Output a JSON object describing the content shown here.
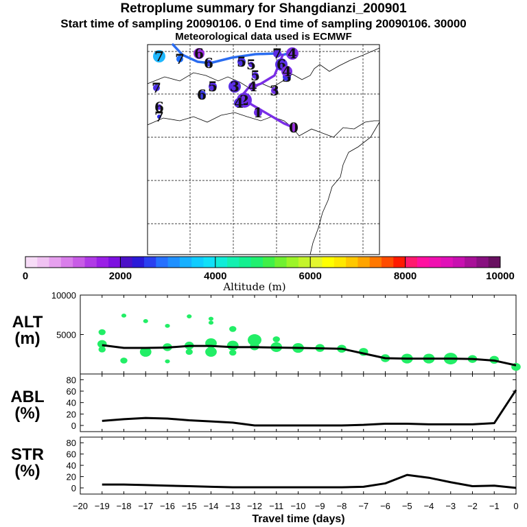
{
  "header": {
    "title": "Retroplume summary for Shangdianzi_200901",
    "subtitle": "Start time of sampling 20090106.     0     End time of sampling 20090106. 30000",
    "met_line": "Meteorological data used is ECMWF"
  },
  "map": {
    "day_markers": [
      {
        "label": "0",
        "color": "#9b30e0"
      },
      {
        "label": "1",
        "color": "#6e2ee6"
      },
      {
        "label": "2",
        "color": "#6e2ee6"
      },
      {
        "label": "3",
        "color": "#6e2ee6"
      },
      {
        "label": "4",
        "color": "#7a2ee6"
      },
      {
        "label": "5",
        "color": "#4a2ee6"
      },
      {
        "label": "6",
        "color": "#3a3ae6"
      },
      {
        "label": "7",
        "color": "#1fb8ff"
      },
      {
        "label": "3",
        "color": "#5a2ee6"
      },
      {
        "label": "4",
        "color": "#5a2ee6"
      },
      {
        "label": "5",
        "color": "#5a2ee6"
      },
      {
        "label": "6",
        "color": "#5a2ee6"
      },
      {
        "label": "7",
        "color": "#5a2ee6"
      },
      {
        "label": "3",
        "color": "#3b2ee6"
      },
      {
        "label": "4",
        "color": "#7a2ee6"
      },
      {
        "label": "5",
        "color": "#5a2ee6"
      },
      {
        "label": "6",
        "color": "#3a3ae6"
      },
      {
        "label": "7",
        "color": "#1d6fff"
      },
      {
        "label": "5",
        "color": "#5a2ee6"
      },
      {
        "label": "6",
        "color": "#9b30e0"
      },
      {
        "label": "7",
        "color": "#4a2ee6"
      },
      {
        "label": "6",
        "color": "#5a2ee6"
      },
      {
        "label": "7",
        "color": "#2a2ae6"
      },
      {
        "label": "4",
        "color": "#7a2ee6"
      }
    ]
  },
  "colorbar": {
    "label": "Altitude (m)",
    "ticks": [
      "0",
      "2000",
      "4000",
      "6000",
      "8000",
      "10000"
    ],
    "colors": [
      "#f7dcf7",
      "#f0c2f2",
      "#e6a0ee",
      "#d97eea",
      "#c85ce6",
      "#b03ae6",
      "#9a1fe6",
      "#7d10e0",
      "#4b10c8",
      "#2a1ad8",
      "#2a40f0",
      "#2570ff",
      "#1f90ff",
      "#17b0ff",
      "#10ccff",
      "#10e0f8",
      "#10ecd8",
      "#14f0b0",
      "#14f090",
      "#20f070",
      "#40f048",
      "#70f030",
      "#9cf428",
      "#c4f42a",
      "#e4f630",
      "#ffff00",
      "#ffe800",
      "#ffc800",
      "#ffa400",
      "#ff7800",
      "#ff4c00",
      "#ff1a00",
      "#ff1a6e",
      "#ff10a0",
      "#f010b0",
      "#e010b8",
      "#c810b0",
      "#a81098",
      "#881080",
      "#681060"
    ]
  },
  "panels": {
    "alt": {
      "line1": "ALT",
      "line2": "(m)"
    },
    "abl": {
      "line1": "ABL",
      "line2": "(%)"
    },
    "str": {
      "line1": "STR",
      "line2": "(%)"
    }
  },
  "chart_data": [
    {
      "type": "line",
      "title": "ALT",
      "xlabel": "Travel time (days)",
      "ylabel": "(m)",
      "xlim": [
        -20,
        0
      ],
      "ylim": [
        0,
        10000
      ],
      "y_tick_labels": [
        "5000",
        "10000"
      ],
      "x": [
        0,
        -1,
        -2,
        -3,
        -4,
        -5,
        -6,
        -7,
        -8,
        -9,
        -10,
        -11,
        -12,
        -13,
        -14,
        -15,
        -16,
        -17,
        -18,
        -19
      ],
      "series": [
        {
          "name": "mean altitude",
          "values": [
            1100,
            1700,
            1900,
            1950,
            1950,
            1950,
            2000,
            2600,
            3200,
            3250,
            3300,
            3350,
            3400,
            3400,
            3550,
            3550,
            3350,
            3300,
            3300,
            3650
          ]
        }
      ],
      "scatter": {
        "name": "particle clusters",
        "x": [
          0,
          -1,
          -2,
          -3,
          -4,
          -5,
          -6,
          -7,
          -8,
          -9,
          -10,
          -11,
          -11,
          -12,
          -12,
          -13,
          -13,
          -13,
          -14,
          -14,
          -14,
          -14,
          -15,
          -15,
          -15,
          -16,
          -16,
          -16,
          -17,
          -17,
          -18,
          -18,
          -19,
          -19,
          -19
        ],
        "y": [
          900,
          1800,
          1900,
          1950,
          1950,
          1950,
          2000,
          2800,
          3200,
          3300,
          3300,
          3400,
          4400,
          3500,
          4300,
          3600,
          2700,
          5700,
          3900,
          2800,
          6500,
          7000,
          3600,
          2800,
          7300,
          3400,
          1600,
          6100,
          2800,
          6700,
          1700,
          7400,
          3800,
          3100,
          5300
        ],
        "size": [
          3,
          3,
          3,
          5,
          4,
          4,
          3,
          3,
          3,
          3,
          4,
          4,
          2,
          3,
          5,
          4,
          2,
          2,
          4,
          4,
          1,
          1,
          3,
          2,
          1,
          3,
          1,
          1,
          4,
          1,
          2,
          1,
          3,
          2,
          2
        ]
      }
    },
    {
      "type": "line",
      "title": "ABL",
      "xlabel": "Travel time (days)",
      "ylabel": "(%)",
      "xlim": [
        -20,
        0
      ],
      "ylim": [
        0,
        90
      ],
      "y_tick_labels": [
        "0",
        "20",
        "40",
        "60",
        "80"
      ],
      "x": [
        0,
        -1,
        -2,
        -3,
        -4,
        -5,
        -6,
        -7,
        -8,
        -9,
        -10,
        -11,
        -12,
        -13,
        -14,
        -15,
        -16,
        -17,
        -18,
        -19
      ],
      "series": [
        {
          "name": "ABL fraction",
          "values": [
            62,
            4,
            2,
            2,
            2,
            3,
            3,
            1,
            0,
            0,
            0,
            0,
            0,
            5,
            7,
            9,
            12,
            13,
            11,
            8
          ]
        }
      ]
    },
    {
      "type": "line",
      "title": "STR",
      "xlabel": "Travel time (days)",
      "ylabel": "(%)",
      "xlim": [
        -20,
        0
      ],
      "ylim": [
        0,
        90
      ],
      "y_tick_labels": [
        "0",
        "20",
        "40",
        "60",
        "80"
      ],
      "x_tick_labels": [
        "−20",
        "−19",
        "−18",
        "−17",
        "−16",
        "−15",
        "−14",
        "−13",
        "−12",
        "−11",
        "−10",
        "−9",
        "−8",
        "−7",
        "−6",
        "−5",
        "−4",
        "−3",
        "−2",
        "−1",
        "0"
      ],
      "x": [
        0,
        -1,
        -2,
        -3,
        -4,
        -5,
        -6,
        -7,
        -8,
        -9,
        -10,
        -11,
        -12,
        -13,
        -14,
        -15,
        -16,
        -17,
        -18,
        -19
      ],
      "series": [
        {
          "name": "STR fraction",
          "values": [
            0,
            4,
            3,
            10,
            18,
            23,
            8,
            2,
            1,
            1,
            1,
            1,
            1,
            1,
            2,
            3,
            4,
            5,
            6,
            6
          ]
        }
      ]
    }
  ]
}
